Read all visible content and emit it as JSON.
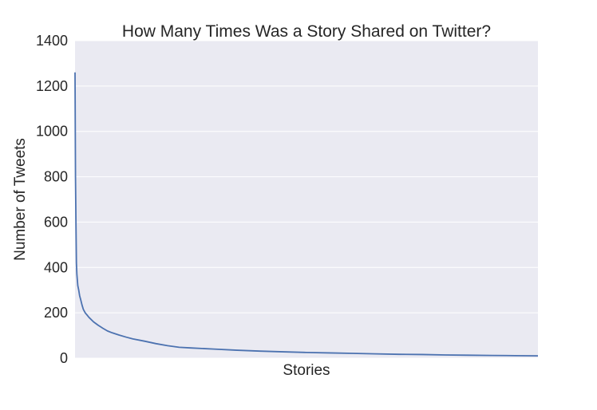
{
  "chart_data": {
    "type": "line",
    "title": "How Many Times Was a Story Shared on Twitter?",
    "xlabel": "Stories",
    "ylabel": "Number of Tweets",
    "ylim": [
      0,
      1400
    ],
    "yticks": [
      0,
      200,
      400,
      600,
      800,
      1000,
      1200,
      1400
    ],
    "xticks": [],
    "grid": true,
    "series": [
      {
        "color": "#4c72b0",
        "x": [
          0,
          1,
          2,
          3,
          4,
          6,
          8,
          10,
          12,
          15,
          18,
          22,
          26,
          30,
          40,
          50,
          60,
          70,
          80,
          95,
          110,
          125,
          150,
          175,
          200,
          225,
          250,
          300,
          350,
          400,
          450,
          500,
          550,
          600,
          650,
          700,
          750,
          800,
          850,
          900,
          950,
          1000
        ],
        "y": [
          1260,
          800,
          600,
          420,
          370,
          320,
          300,
          275,
          260,
          235,
          215,
          200,
          190,
          180,
          160,
          145,
          132,
          120,
          112,
          102,
          93,
          85,
          75,
          64,
          55,
          48,
          45,
          40,
          35,
          31,
          28,
          25,
          23,
          21,
          19,
          17,
          16,
          14,
          13,
          12,
          11,
          10
        ]
      }
    ]
  }
}
